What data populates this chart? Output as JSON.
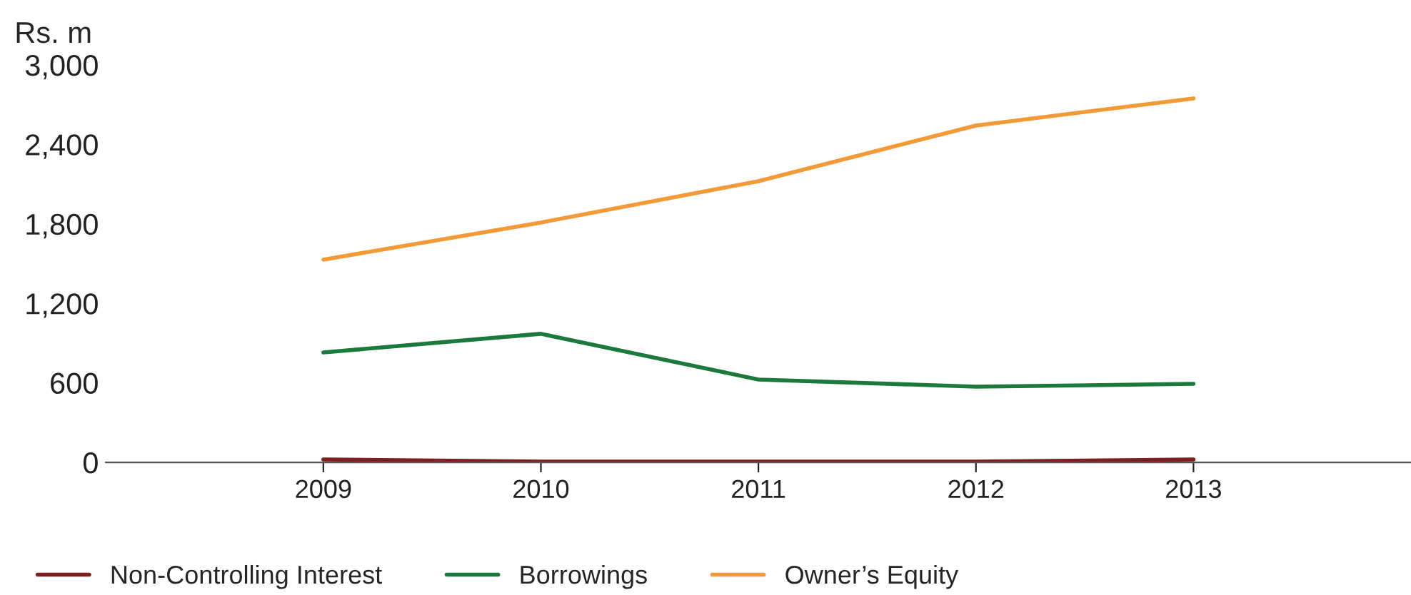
{
  "chart_data": {
    "type": "line",
    "ylabel": "Rs. m",
    "x": [
      2009,
      2010,
      2011,
      2012,
      2013
    ],
    "series": [
      {
        "name": "Non-Controlling Interest",
        "color": "#7d1f1f",
        "values": [
          22,
          5,
          5,
          5,
          22
        ]
      },
      {
        "name": "Borrowings",
        "color": "#1b7a3b",
        "values": [
          829,
          970,
          625,
          571,
          592
        ]
      },
      {
        "name": "Owner’s Equity",
        "color": "#f29a38",
        "values": [
          1530,
          1810,
          2122,
          2542,
          2747
        ]
      }
    ],
    "xlim": [
      2008,
      2014
    ],
    "xticks": [
      2009,
      2010,
      2011,
      2012,
      2013
    ],
    "ylim": [
      0,
      3000
    ],
    "yticks": [
      {
        "value": 0,
        "label": "0"
      },
      {
        "value": 600,
        "label": "600"
      },
      {
        "value": 1200,
        "label": "1,200"
      },
      {
        "value": 1800,
        "label": "1,800"
      },
      {
        "value": 2400,
        "label": "2,400"
      },
      {
        "value": 3000,
        "label": "3,000"
      }
    ],
    "grid": false,
    "legend": "bottom",
    "marker": "none",
    "line_style": "solid"
  }
}
